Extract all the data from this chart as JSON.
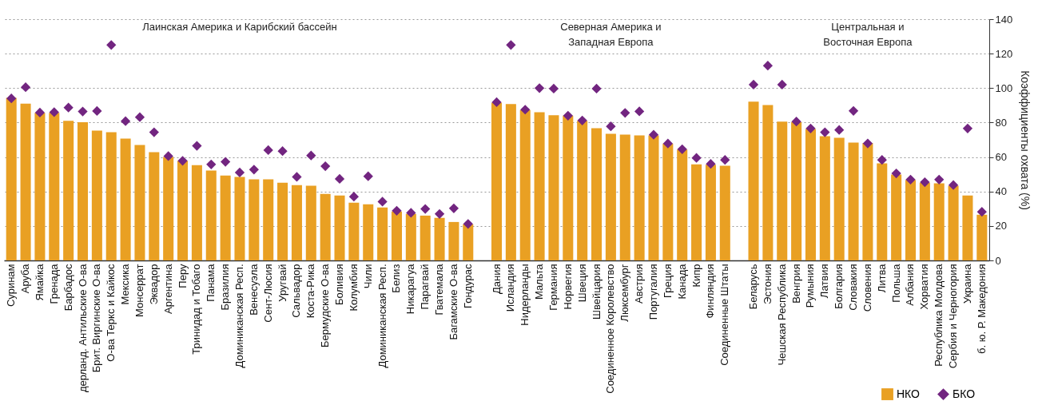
{
  "chart_data": {
    "type": "bar",
    "categories": [
      "Суринам",
      "Аруба",
      "Ямайка",
      "Гренада",
      "Барбадос",
      "дерланд. Антильские О-ва",
      "Брит. Виргинские О-ва",
      "О-ва Теркс и Кайкос",
      "Мексика",
      "Монсеррат",
      "Эквадор",
      "Аргентина",
      "Перу",
      "Тринидад и Тобаго",
      "Панама",
      "Бразилия",
      "Доминиканская Респ.",
      "Венесуэла",
      "Сент-Люсия",
      "Уругвай",
      "Сальвадор",
      "Коста-Рика",
      "Бермудские О-ва",
      "Боливия",
      "Колумбия",
      "Чили",
      "Доминиканская Респ.",
      "Белиз",
      "Никарагуа",
      "Парагвай",
      "Гватемала",
      "Багамские О-ва",
      "Гондурас",
      null,
      "Дания",
      "Исландия",
      "Нидерланды",
      "Мальта",
      "Германия",
      "Норвегия",
      "Швеция",
      "Швейцария",
      "Соединенное Королевство",
      "Люксембург",
      "Австрия",
      "Португалия",
      "Греция",
      "Канада",
      "Кипр",
      "Финляндия",
      "Соединенные Штаты",
      null,
      "Беларусь",
      "Эстония",
      "Чешская Республика",
      "Венгрия",
      "Румыния",
      "Латвия",
      "Болгария",
      "Словакия",
      "Словения",
      "Литва",
      "Польша",
      "Албания",
      "Хорватия",
      "Республика Молдова",
      "Сербия и Черногория",
      "Украина",
      "б. ю. Р. Македония"
    ],
    "series": [
      {
        "name": "НКО",
        "color": "#e9a023",
        "values": [
          94.3,
          91,
          85.6,
          85.6,
          81,
          80.2,
          75.3,
          74.4,
          70.7,
          67,
          62.8,
          60,
          57.8,
          55.3,
          52.1,
          49.3,
          48.4,
          47,
          47,
          45.1,
          43.7,
          43.3,
          38.6,
          37.7,
          33.5,
          32.6,
          30.7,
          28.4,
          27,
          26,
          24.7,
          22.3,
          21,
          null,
          91.5,
          90.7,
          87.3,
          86,
          84.2,
          84,
          81,
          76.7,
          73.5,
          73,
          72.6,
          72.6,
          67.8,
          64.3,
          55.8,
          55.5,
          54.9,
          null,
          92.1,
          90.2,
          80.5,
          80.3,
          76.3,
          72.1,
          71.2,
          68.4,
          68.2,
          56.3,
          49.8,
          46.7,
          45.1,
          44.7,
          43.4,
          37.7,
          26.5
        ]
      },
      {
        "name": "БКО",
        "type": "scatter",
        "marker": "diamond",
        "color": "#722580",
        "values": [
          94,
          100.5,
          85.8,
          86,
          88.7,
          86.4,
          86.7,
          125,
          80.8,
          83.1,
          74.4,
          60.5,
          57.8,
          66.5,
          55.7,
          57.2,
          51,
          52.7,
          64,
          63.4,
          48.5,
          60.9,
          54.7,
          47.3,
          37,
          48.8,
          34.1,
          28.8,
          27.6,
          29.9,
          27,
          30.2,
          21.2,
          null,
          91.8,
          125,
          87.5,
          100,
          99.7,
          84,
          81.2,
          99.7,
          77.8,
          85.6,
          86.5,
          72.9,
          67.8,
          64.5,
          59.5,
          56,
          58.3,
          null,
          102,
          113,
          102,
          80.6,
          76.6,
          74.4,
          75.7,
          86.8,
          67.9,
          58.3,
          50.5,
          46.9,
          45.4,
          46.9,
          43.7,
          76.6,
          28.2
        ]
      }
    ],
    "ylabel": "Коэффициенты охвата (%)",
    "ylim": [
      0,
      140
    ],
    "yticks": [
      0,
      20,
      40,
      60,
      80,
      100,
      120,
      140
    ],
    "grid": "y",
    "legend": "bottom right",
    "annotations": [
      "Лаинская Америка и Карибский бассейн",
      "Северная Америка и\nЗападная Европа",
      "Центральная и\nВосточная Европа"
    ]
  }
}
